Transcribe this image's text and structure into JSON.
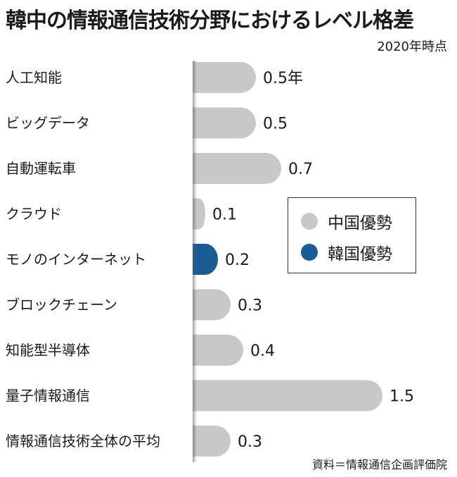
{
  "title": "韓中の情報通信技術分野におけるレベル格差",
  "note": "2020年時点",
  "source": "資料＝情報通信企画評価院",
  "legend": [
    {
      "label": "中国優勢",
      "color": "#c8c8c8"
    },
    {
      "label": "韓国優勢",
      "color": "#1a5c96"
    }
  ],
  "chart_data": {
    "type": "bar",
    "orientation": "horizontal",
    "categories": [
      "人工知能",
      "ビッグデータ",
      "自動運転車",
      "クラウド",
      "モノのインターネット",
      "ブロックチェーン",
      "知能型半導体",
      "量子情報通信",
      "情報通信技術全体の平均"
    ],
    "values": [
      0.5,
      0.5,
      0.7,
      0.1,
      0.2,
      0.3,
      0.4,
      1.5,
      0.3
    ],
    "value_labels": [
      "0.5年",
      "0.5",
      "0.7",
      "0.1",
      "0.2",
      "0.3",
      "0.4",
      "1.5",
      "0.3"
    ],
    "leader": [
      "中国優勢",
      "中国優勢",
      "中国優勢",
      "中国優勢",
      "韓国優勢",
      "中国優勢",
      "中国優勢",
      "中国優勢",
      "中国優勢"
    ],
    "unit": "年",
    "colors": {
      "中国優勢": "#c8c8c8",
      "韓国優勢": "#1a5c96"
    },
    "value_label_colors": {
      "中国優勢": "#1a1a1a",
      "韓国優勢": "#1a5c96"
    },
    "legend_position": "right"
  }
}
